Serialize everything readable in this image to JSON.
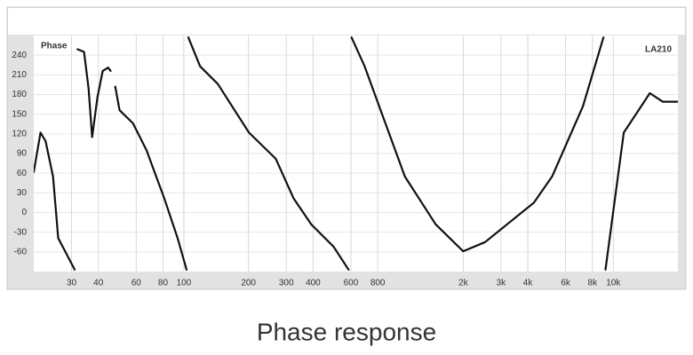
{
  "chart_data": {
    "type": "line",
    "title": "Phase response",
    "annotation": "LA210",
    "x_scale": "log",
    "xlim": [
      20,
      20000
    ],
    "ylim": [
      -90,
      270
    ],
    "grid": true,
    "xticks": [
      30,
      40,
      60,
      80,
      100,
      200,
      300,
      400,
      600,
      800,
      {
        "value": 2000,
        "label": "2k"
      },
      {
        "value": 3000,
        "label": "3k"
      },
      {
        "value": 4000,
        "label": "4k"
      },
      {
        "value": 6000,
        "label": "6k"
      },
      {
        "value": 8000,
        "label": "8k"
      },
      {
        "value": 10000,
        "label": "10k"
      }
    ],
    "yticks": [
      -60,
      -30,
      0,
      30,
      60,
      90,
      120,
      150,
      180,
      210,
      240
    ],
    "series": [
      {
        "name": "Phase",
        "color": "#111111",
        "x": [
          20,
          21.5,
          22.7,
          24.6,
          26,
          28,
          31,
          null,
          32,
          34.3,
          36,
          37.4,
          39.6,
          41.9,
          44.4,
          45.6,
          null,
          47.9,
          50.2,
          58,
          67,
          81,
          93.5,
          103,
          null,
          105,
          119,
          144,
          201,
          268,
          324,
          392,
          498,
          585,
          null,
          604,
          695,
          840,
          1070,
          1490,
          2000,
          2530,
          3200,
          4270,
          5190,
          7220,
          9000,
          null,
          9200,
          11200,
          14800,
          17000,
          20000
        ],
        "values": [
          62,
          122,
          109,
          55,
          -39,
          -59,
          -87,
          null,
          249,
          245,
          189,
          115,
          176,
          216,
          221,
          216,
          null,
          192,
          156,
          136,
          95,
          22,
          -39,
          -87,
          null,
          267,
          223,
          196,
          122,
          82,
          22,
          -18,
          -52,
          -87,
          null,
          267,
          223,
          149,
          55,
          -18,
          -59,
          -45,
          -18,
          15,
          55,
          162,
          267,
          null,
          -87,
          122,
          182,
          169,
          169
        ]
      }
    ]
  }
}
